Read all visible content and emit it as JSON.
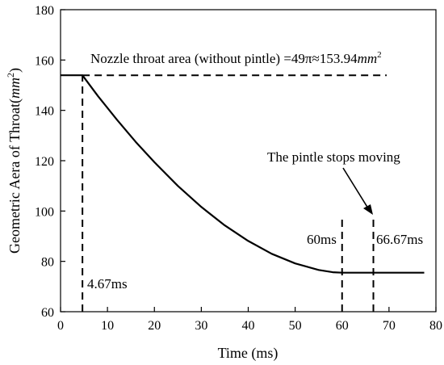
{
  "chart_data": {
    "type": "line",
    "title": "",
    "xlabel": "Time (ms)",
    "ylabel_prefix": "Geometric Aera of Throat(",
    "ylabel_unit": "mm",
    "ylabel_exp": "2",
    "ylabel_suffix": ")",
    "xlim": [
      0,
      80
    ],
    "ylim": [
      60,
      180
    ],
    "x_ticks": [
      0,
      10,
      20,
      30,
      40,
      50,
      60,
      70,
      80
    ],
    "y_ticks": [
      60,
      80,
      100,
      120,
      140,
      160,
      180
    ],
    "grid": false,
    "legend": "none",
    "series": [
      {
        "x": [
          0,
          4.67,
          8,
          12,
          16,
          20,
          25,
          30,
          35,
          40,
          45,
          50,
          55,
          58,
          60,
          62,
          66.67,
          70,
          77.5
        ],
        "y": [
          153.94,
          153.94,
          145.6,
          136.3,
          127.5,
          119.4,
          110.0,
          101.6,
          94.3,
          88.1,
          83.0,
          79.2,
          76.6,
          75.7,
          75.5,
          75.5,
          75.5,
          75.5,
          75.5
        ]
      }
    ],
    "reference_lines": [
      {
        "kind": "horizontal",
        "y": 153.94,
        "x_range": [
          4.67,
          69.5
        ]
      },
      {
        "kind": "vertical",
        "x": 4.67,
        "y_range": [
          60,
          153.94
        ]
      },
      {
        "kind": "vertical",
        "x": 60,
        "y_range": [
          60,
          98
        ]
      },
      {
        "kind": "vertical",
        "x": 66.67,
        "y_range": [
          60,
          98
        ]
      }
    ],
    "annotations": {
      "throat_text": "Nozzle throat area (without pintle) =49π≈153.94",
      "throat_unit": "mm",
      "throat_exp": "2",
      "t1": "4.67ms",
      "t2": "60ms",
      "t3": "66.67ms",
      "pintle_stop": "The pintle stops moving"
    }
  }
}
